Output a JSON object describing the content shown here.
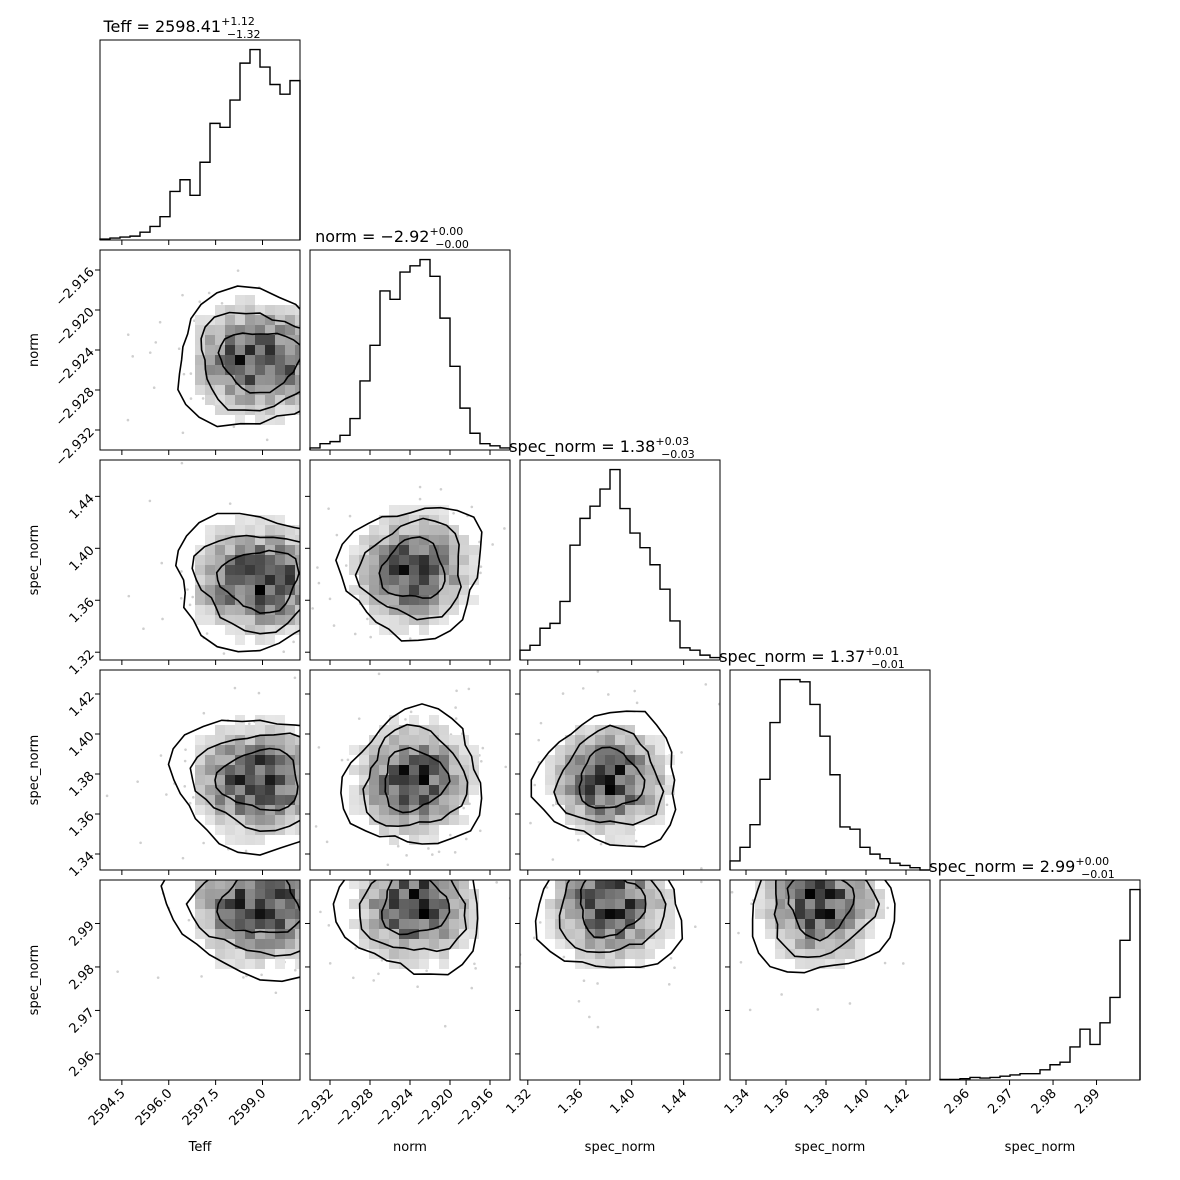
{
  "chart_data": {
    "type": "corner",
    "parameters": [
      {
        "label": "Teff",
        "range": [
          2593.8,
          2600.2
        ],
        "ticks": [
          2594.5,
          2596.0,
          2597.5,
          2599.0
        ],
        "tick_labels": [
          "2594.5",
          "2596.0",
          "2597.5",
          "2599.0"
        ],
        "title": {
          "prefix": "Teff = ",
          "value": "2598.41",
          "plus": "+1.12",
          "minus": "−1.32"
        }
      },
      {
        "label": "norm",
        "range": [
          -2.934,
          -2.914
        ],
        "ticks": [
          -2.932,
          -2.928,
          -2.924,
          -2.92,
          -2.916
        ],
        "tick_labels": [
          "−2.932",
          "−2.928",
          "−2.924",
          "−2.920",
          "−2.916"
        ],
        "title": {
          "prefix": "norm = ",
          "value": "−2.92",
          "plus": "+0.00",
          "minus": "−0.00"
        }
      },
      {
        "label": "spec_norm",
        "range": [
          1.314,
          1.468
        ],
        "ticks": [
          1.32,
          1.36,
          1.4,
          1.44
        ],
        "tick_labels": [
          "1.32",
          "1.36",
          "1.40",
          "1.44"
        ],
        "title": {
          "prefix": "spec_norm = ",
          "value": "1.38",
          "plus": "+0.03",
          "minus": "−0.03"
        }
      },
      {
        "label": "spec_norm",
        "range": [
          1.332,
          1.432
        ],
        "ticks": [
          1.34,
          1.36,
          1.38,
          1.4,
          1.42
        ],
        "tick_labels": [
          "1.34",
          "1.36",
          "1.38",
          "1.40",
          "1.42"
        ],
        "title": {
          "prefix": "spec_norm = ",
          "value": "1.37",
          "plus": "+0.01",
          "minus": "−0.01"
        }
      },
      {
        "label": "spec_norm",
        "range": [
          2.954,
          3.0
        ],
        "ticks": [
          2.96,
          2.97,
          2.98,
          2.99
        ],
        "tick_labels": [
          "2.96",
          "2.97",
          "2.98",
          "2.99"
        ],
        "title": {
          "prefix": "spec_norm = ",
          "value": "2.99",
          "plus": "+0.00",
          "minus": "−0.01"
        }
      }
    ],
    "histograms": [
      [
        0.5,
        1,
        1.5,
        2,
        4,
        7,
        12,
        25,
        31,
        23,
        40,
        60,
        58,
        72,
        91,
        98,
        89,
        80,
        75,
        82
      ],
      [
        1,
        3,
        4,
        7,
        15,
        33,
        50,
        76,
        72,
        85,
        88,
        91,
        83,
        63,
        40,
        20,
        8,
        3,
        2,
        1
      ],
      [
        4,
        6,
        13,
        15,
        24,
        47,
        58,
        63,
        70,
        78,
        62,
        52,
        46,
        39,
        29,
        16,
        5,
        4,
        2,
        1
      ],
      [
        4,
        10,
        20,
        40,
        65,
        84,
        84,
        83,
        73,
        59,
        42,
        19,
        18,
        10,
        7,
        5,
        3,
        2,
        1,
        0
      ],
      [
        0.4,
        0.4,
        1,
        2,
        1.5,
        2,
        3,
        4,
        5,
        5,
        8,
        12,
        14,
        26,
        40,
        28,
        45,
        65,
        110,
        150
      ]
    ],
    "x_labels": [
      "Teff",
      "norm",
      "spec_norm",
      "spec_norm",
      "spec_norm"
    ],
    "y_labels": [
      "norm",
      "spec_norm",
      "spec_norm",
      "spec_norm"
    ],
    "grid": false
  }
}
